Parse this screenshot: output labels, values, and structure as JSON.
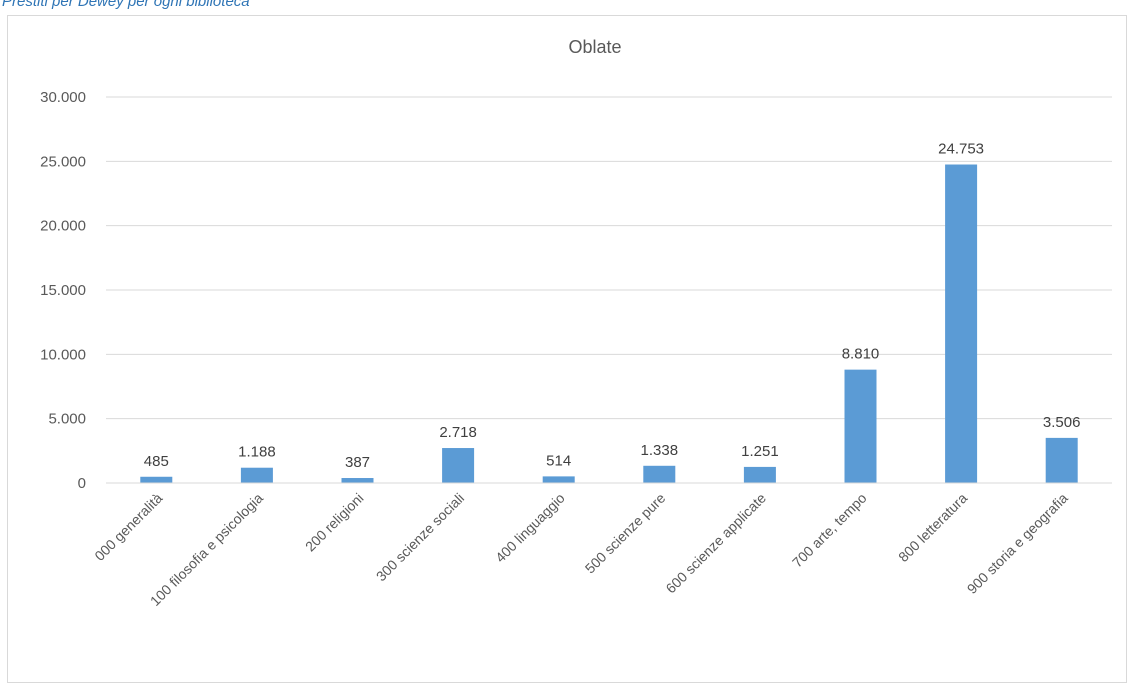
{
  "caption": "Prestiti per Dewey per ogni biblioteca",
  "chart_data": {
    "type": "bar",
    "title": "Oblate",
    "categories": [
      "000 generalità",
      "100 filosofia e psicologia",
      "200 religioni",
      "300 scienze sociali",
      "400 linguaggio",
      "500 scienze pure",
      "600 scienze applicate",
      "700 arte, tempo",
      "800 letteratura",
      "900 storia e geografia"
    ],
    "values": [
      485,
      1188,
      387,
      2718,
      514,
      1338,
      1251,
      8810,
      24753,
      3506
    ],
    "data_labels": [
      "485",
      "1.188",
      "387",
      "2.718",
      "514",
      "1.338",
      "1.251",
      "8.810",
      "24.753",
      "3.506"
    ],
    "yticks": [
      "0",
      "5.000",
      "10.000",
      "15.000",
      "20.000",
      "25.000",
      "30.000"
    ],
    "ylim": [
      0,
      30000
    ],
    "xlabel": "",
    "ylabel": "",
    "grid": true,
    "legend": "none",
    "bar_color": "#5B9BD5",
    "grid_color": "#d9d9d9"
  }
}
